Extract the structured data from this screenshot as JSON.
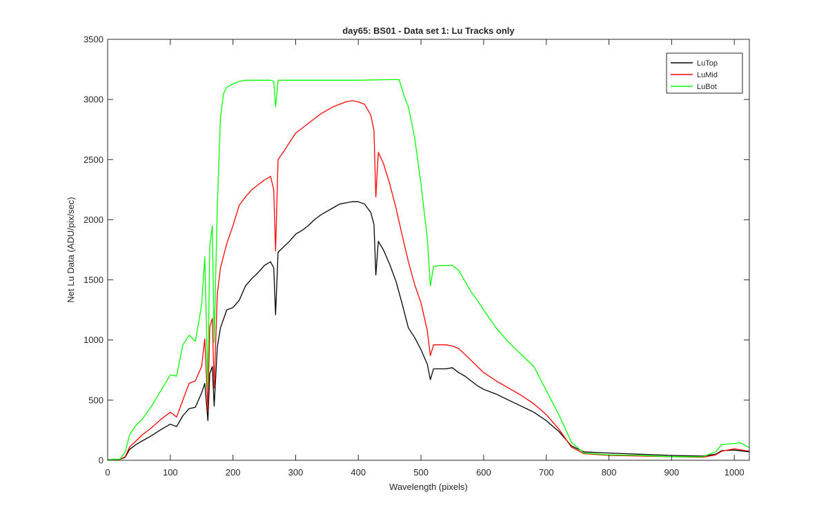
{
  "chart_data": {
    "type": "line",
    "title": "day65: BS01 - Data set 1: Lu Tracks only",
    "xlabel": "Wavelength (pixels)",
    "ylabel": "Net Lu Data (ADU/pix/sec)",
    "xlim": [
      0,
      1024
    ],
    "ylim": [
      0,
      3500
    ],
    "xticks": [
      0,
      100,
      200,
      300,
      400,
      500,
      600,
      700,
      800,
      900,
      1000
    ],
    "yticks": [
      0,
      500,
      1000,
      1500,
      2000,
      2500,
      3000,
      3500
    ],
    "grid": false,
    "legend_position": "top-right",
    "series": [
      {
        "name": "LuTop",
        "color": "#000000",
        "points": [
          [
            0,
            5
          ],
          [
            20,
            8
          ],
          [
            28,
            25
          ],
          [
            35,
            90
          ],
          [
            45,
            130
          ],
          [
            55,
            160
          ],
          [
            70,
            205
          ],
          [
            85,
            255
          ],
          [
            100,
            300
          ],
          [
            110,
            280
          ],
          [
            120,
            370
          ],
          [
            130,
            430
          ],
          [
            140,
            440
          ],
          [
            150,
            560
          ],
          [
            155,
            640
          ],
          [
            160,
            330
          ],
          [
            163,
            720
          ],
          [
            167,
            780
          ],
          [
            170,
            450
          ],
          [
            175,
            940
          ],
          [
            180,
            1100
          ],
          [
            190,
            1250
          ],
          [
            200,
            1270
          ],
          [
            210,
            1330
          ],
          [
            220,
            1450
          ],
          [
            230,
            1510
          ],
          [
            240,
            1560
          ],
          [
            250,
            1620
          ],
          [
            260,
            1650
          ],
          [
            265,
            1600
          ],
          [
            268,
            1210
          ],
          [
            272,
            1730
          ],
          [
            280,
            1770
          ],
          [
            290,
            1820
          ],
          [
            300,
            1880
          ],
          [
            310,
            1910
          ],
          [
            320,
            1950
          ],
          [
            330,
            2000
          ],
          [
            340,
            2040
          ],
          [
            350,
            2070
          ],
          [
            360,
            2100
          ],
          [
            370,
            2130
          ],
          [
            380,
            2140
          ],
          [
            390,
            2150
          ],
          [
            400,
            2150
          ],
          [
            410,
            2130
          ],
          [
            420,
            2060
          ],
          [
            425,
            1960
          ],
          [
            428,
            1540
          ],
          [
            432,
            1820
          ],
          [
            440,
            1750
          ],
          [
            450,
            1630
          ],
          [
            460,
            1490
          ],
          [
            470,
            1300
          ],
          [
            480,
            1100
          ],
          [
            490,
            1020
          ],
          [
            500,
            920
          ],
          [
            510,
            800
          ],
          [
            515,
            670
          ],
          [
            520,
            760
          ],
          [
            530,
            760
          ],
          [
            540,
            760
          ],
          [
            550,
            770
          ],
          [
            560,
            730
          ],
          [
            570,
            700
          ],
          [
            580,
            660
          ],
          [
            590,
            620
          ],
          [
            600,
            590
          ],
          [
            620,
            550
          ],
          [
            640,
            500
          ],
          [
            660,
            450
          ],
          [
            680,
            400
          ],
          [
            700,
            330
          ],
          [
            720,
            240
          ],
          [
            740,
            120
          ],
          [
            760,
            70
          ],
          [
            800,
            60
          ],
          [
            850,
            50
          ],
          [
            900,
            40
          ],
          [
            950,
            35
          ],
          [
            970,
            50
          ],
          [
            980,
            80
          ],
          [
            1000,
            85
          ],
          [
            1024,
            70
          ]
        ]
      },
      {
        "name": "LuMid",
        "color": "#ff0000",
        "points": [
          [
            0,
            5
          ],
          [
            20,
            8
          ],
          [
            28,
            30
          ],
          [
            35,
            110
          ],
          [
            45,
            160
          ],
          [
            55,
            210
          ],
          [
            70,
            270
          ],
          [
            85,
            340
          ],
          [
            100,
            400
          ],
          [
            110,
            360
          ],
          [
            120,
            500
          ],
          [
            130,
            640
          ],
          [
            140,
            660
          ],
          [
            150,
            780
          ],
          [
            155,
            1010
          ],
          [
            160,
            410
          ],
          [
            163,
            1110
          ],
          [
            167,
            1180
          ],
          [
            170,
            600
          ],
          [
            175,
            1380
          ],
          [
            180,
            1600
          ],
          [
            190,
            1800
          ],
          [
            200,
            1950
          ],
          [
            210,
            2120
          ],
          [
            220,
            2190
          ],
          [
            230,
            2250
          ],
          [
            240,
            2290
          ],
          [
            250,
            2330
          ],
          [
            260,
            2360
          ],
          [
            265,
            2250
          ],
          [
            268,
            1740
          ],
          [
            272,
            2500
          ],
          [
            280,
            2560
          ],
          [
            290,
            2640
          ],
          [
            300,
            2720
          ],
          [
            310,
            2760
          ],
          [
            320,
            2800
          ],
          [
            330,
            2840
          ],
          [
            340,
            2880
          ],
          [
            350,
            2910
          ],
          [
            360,
            2940
          ],
          [
            370,
            2960
          ],
          [
            380,
            2980
          ],
          [
            390,
            2990
          ],
          [
            400,
            2980
          ],
          [
            410,
            2960
          ],
          [
            420,
            2870
          ],
          [
            425,
            2740
          ],
          [
            428,
            2190
          ],
          [
            432,
            2560
          ],
          [
            440,
            2470
          ],
          [
            450,
            2300
          ],
          [
            460,
            2100
          ],
          [
            470,
            1870
          ],
          [
            480,
            1650
          ],
          [
            490,
            1460
          ],
          [
            500,
            1310
          ],
          [
            510,
            1080
          ],
          [
            515,
            870
          ],
          [
            520,
            960
          ],
          [
            530,
            960
          ],
          [
            540,
            960
          ],
          [
            550,
            950
          ],
          [
            560,
            930
          ],
          [
            570,
            880
          ],
          [
            580,
            830
          ],
          [
            590,
            780
          ],
          [
            600,
            730
          ],
          [
            620,
            660
          ],
          [
            640,
            600
          ],
          [
            660,
            540
          ],
          [
            680,
            470
          ],
          [
            700,
            380
          ],
          [
            720,
            260
          ],
          [
            740,
            110
          ],
          [
            760,
            55
          ],
          [
            800,
            40
          ],
          [
            850,
            35
          ],
          [
            900,
            30
          ],
          [
            950,
            25
          ],
          [
            970,
            45
          ],
          [
            980,
            75
          ],
          [
            1000,
            95
          ],
          [
            1024,
            75
          ]
        ]
      },
      {
        "name": "LuBot",
        "color": "#00ff00",
        "points": [
          [
            0,
            5
          ],
          [
            20,
            10
          ],
          [
            28,
            70
          ],
          [
            35,
            210
          ],
          [
            45,
            290
          ],
          [
            55,
            340
          ],
          [
            70,
            450
          ],
          [
            85,
            580
          ],
          [
            100,
            710
          ],
          [
            110,
            700
          ],
          [
            120,
            960
          ],
          [
            130,
            1040
          ],
          [
            140,
            990
          ],
          [
            150,
            1290
          ],
          [
            155,
            1690
          ],
          [
            160,
            600
          ],
          [
            163,
            1780
          ],
          [
            167,
            1950
          ],
          [
            170,
            980
          ],
          [
            175,
            2100
          ],
          [
            180,
            2850
          ],
          [
            185,
            3050
          ],
          [
            190,
            3100
          ],
          [
            200,
            3130
          ],
          [
            210,
            3150
          ],
          [
            220,
            3160
          ],
          [
            240,
            3160
          ],
          [
            260,
            3160
          ],
          [
            265,
            3150
          ],
          [
            268,
            2940
          ],
          [
            272,
            3160
          ],
          [
            300,
            3160
          ],
          [
            350,
            3160
          ],
          [
            400,
            3160
          ],
          [
            450,
            3165
          ],
          [
            465,
            3165
          ],
          [
            475,
            3000
          ],
          [
            480,
            2940
          ],
          [
            490,
            2680
          ],
          [
            500,
            2300
          ],
          [
            510,
            1850
          ],
          [
            515,
            1450
          ],
          [
            520,
            1610
          ],
          [
            530,
            1620
          ],
          [
            540,
            1620
          ],
          [
            550,
            1620
          ],
          [
            560,
            1580
          ],
          [
            570,
            1490
          ],
          [
            580,
            1400
          ],
          [
            590,
            1330
          ],
          [
            600,
            1250
          ],
          [
            620,
            1100
          ],
          [
            640,
            980
          ],
          [
            660,
            880
          ],
          [
            680,
            780
          ],
          [
            700,
            580
          ],
          [
            720,
            380
          ],
          [
            740,
            150
          ],
          [
            760,
            60
          ],
          [
            800,
            45
          ],
          [
            850,
            40
          ],
          [
            900,
            30
          ],
          [
            950,
            30
          ],
          [
            970,
            70
          ],
          [
            980,
            130
          ],
          [
            1000,
            140
          ],
          [
            1010,
            145
          ],
          [
            1024,
            105
          ]
        ]
      }
    ]
  }
}
